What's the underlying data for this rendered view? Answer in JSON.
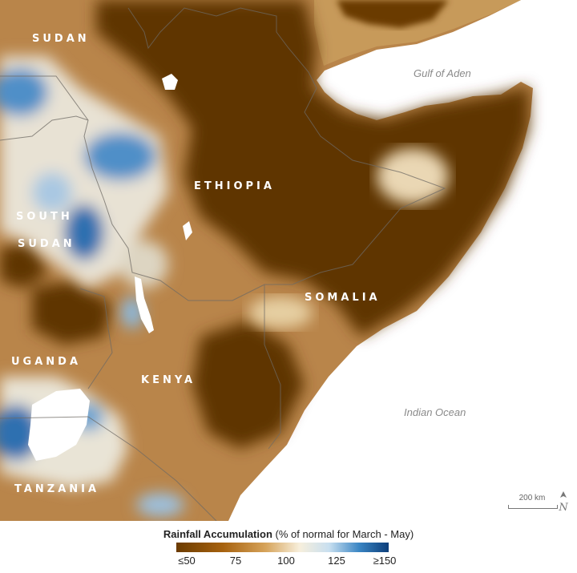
{
  "map": {
    "countries": [
      "SUDAN",
      "ETHIOPIA",
      "SOUTH",
      "SUDAN",
      "SOMALIA",
      "UGANDA",
      "KENYA",
      "TANZANIA"
    ],
    "water_bodies": [
      "Gulf of Aden",
      "Indian Ocean"
    ],
    "scale_label": "200 km",
    "north_icon": "north-arrow-icon"
  },
  "legend": {
    "title_bold": "Rainfall Accumulation",
    "title_rest": " (% of normal for March - May)",
    "ticks": [
      "≤50",
      "75",
      "100",
      "125",
      "≥150"
    ],
    "tick_values": [
      50,
      75,
      100,
      125,
      150
    ],
    "colors": [
      "#6b3b00",
      "#a7620f",
      "#f7efdc",
      "#3b86c4",
      "#0c3e7a"
    ]
  }
}
